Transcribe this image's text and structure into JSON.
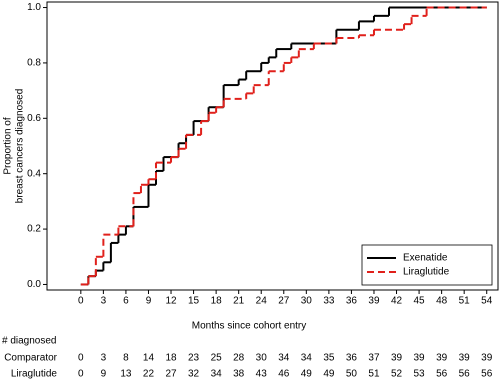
{
  "chart_data": {
    "type": "step",
    "x_label": "Months since cohort entry",
    "y_label": [
      "Proportion of",
      "breast cancers diagnosed"
    ],
    "xlim": [
      -4.5,
      55.5
    ],
    "ylim": [
      -0.02,
      1.02
    ],
    "xticks": [
      0,
      3,
      6,
      9,
      12,
      15,
      18,
      21,
      24,
      27,
      30,
      33,
      36,
      39,
      42,
      45,
      48,
      51,
      54
    ],
    "yticks": [
      {
        "value": 0,
        "label": "0.0"
      },
      {
        "value": 0.2,
        "label": "0.2"
      },
      {
        "value": 0.4,
        "label": "0.4"
      },
      {
        "value": 0.6,
        "label": "0.6"
      },
      {
        "value": 0.8,
        "label": "0.8"
      },
      {
        "value": 1,
        "label": "1.0"
      }
    ],
    "legend_position": "lower right",
    "series": [
      {
        "name": "Exenatide",
        "color": "#000000",
        "dash": false,
        "x": [
          0,
          1,
          2,
          3,
          4,
          5,
          6,
          7,
          9,
          10,
          11,
          13,
          14,
          15,
          17,
          19,
          21,
          22,
          24,
          25,
          26,
          28,
          34,
          37,
          39,
          41,
          54
        ],
        "values": [
          0,
          0.03,
          0.05,
          0.08,
          0.15,
          0.18,
          0.21,
          0.28,
          0.36,
          0.41,
          0.46,
          0.51,
          0.54,
          0.59,
          0.64,
          0.72,
          0.74,
          0.77,
          0.8,
          0.82,
          0.85,
          0.87,
          0.92,
          0.95,
          0.97,
          1,
          1
        ]
      },
      {
        "name": "Liraglutide",
        "color": "#e0201b",
        "dash": true,
        "x": [
          0,
          1,
          2,
          3,
          5,
          7,
          8,
          9,
          10,
          12,
          13,
          14,
          16,
          17,
          18,
          19,
          22,
          23,
          25,
          27,
          28,
          29,
          31,
          34,
          37,
          39,
          43,
          44,
          46,
          54
        ],
        "values": [
          0,
          0.03,
          0.1,
          0.18,
          0.21,
          0.33,
          0.36,
          0.38,
          0.44,
          0.46,
          0.49,
          0.54,
          0.59,
          0.62,
          0.64,
          0.67,
          0.69,
          0.72,
          0.77,
          0.8,
          0.82,
          0.85,
          0.87,
          0.89,
          0.9,
          0.92,
          0.94,
          0.97,
          1,
          1
        ]
      }
    ],
    "risk_table": {
      "title": "# diagnosed",
      "rows": [
        {
          "label": "Comparator",
          "values": [
            0,
            3,
            8,
            14,
            18,
            23,
            25,
            28,
            30,
            34,
            34,
            35,
            36,
            37,
            39,
            39,
            39,
            39,
            39
          ]
        },
        {
          "label": "Liraglutide",
          "values": [
            0,
            9,
            13,
            22,
            27,
            32,
            34,
            38,
            43,
            46,
            49,
            49,
            50,
            51,
            52,
            53,
            56,
            56,
            56
          ]
        }
      ]
    }
  }
}
